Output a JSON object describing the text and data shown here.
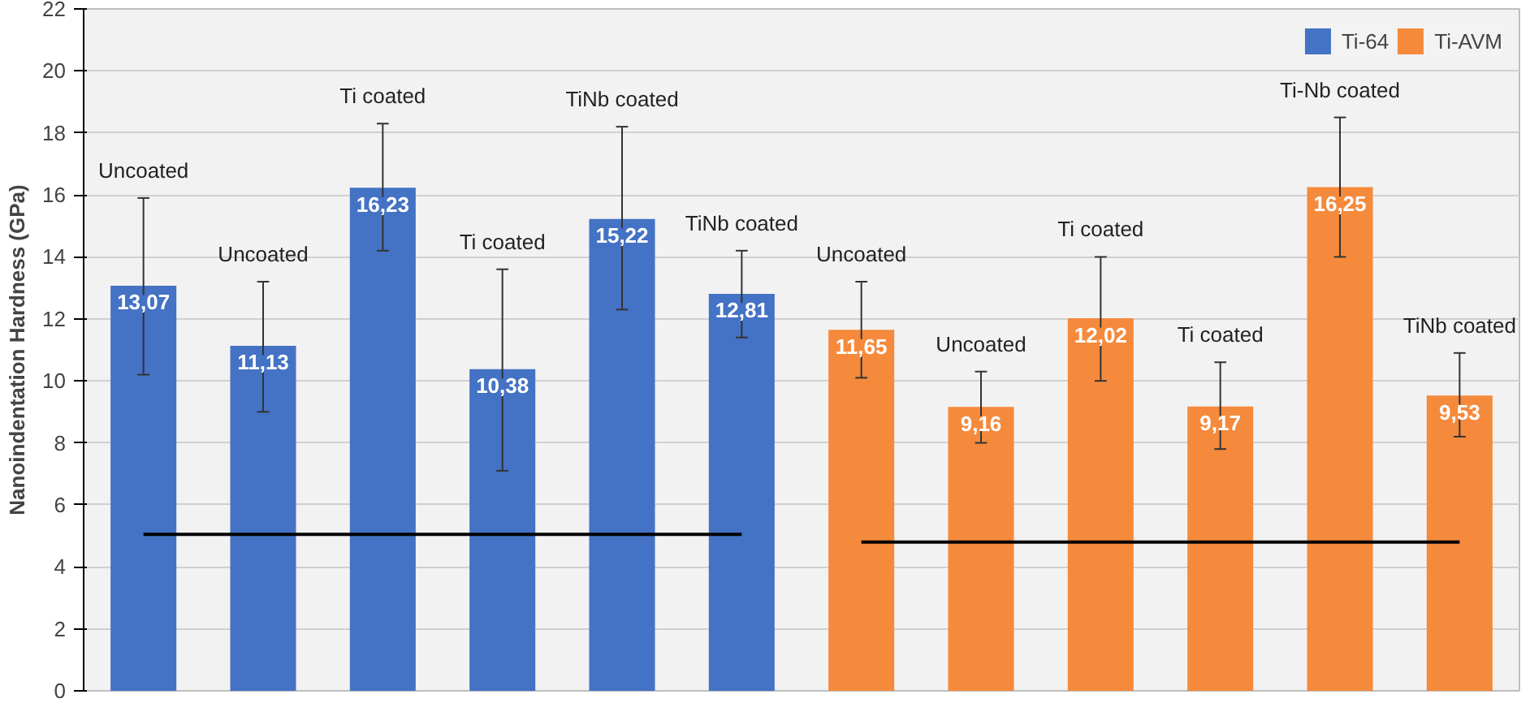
{
  "chart_data": {
    "type": "bar",
    "ylabel": "Nanoindentation Hardness (GPa)",
    "categories": [
      "Uncoated",
      "Uncoated",
      "Ti coated",
      "Ti coated",
      "TiNb coated",
      "TiNb coated",
      "Uncoated",
      "Uncoated",
      "Ti coated",
      "Ti coated",
      "Ti-Nb coated",
      "TiNb coated"
    ],
    "series": [
      {
        "name": "Ti-64",
        "color": "#4472c4",
        "values": [
          13.07,
          11.13,
          16.23,
          10.38,
          15.22,
          12.81,
          null,
          null,
          null,
          null,
          null,
          null
        ],
        "value_labels": [
          "13,07",
          "11,13",
          "16,23",
          "10,38",
          "15,22",
          "12,81",
          null,
          null,
          null,
          null,
          null,
          null
        ],
        "errors": [
          [
            10.2,
            15.9
          ],
          [
            9.0,
            13.2
          ],
          [
            14.2,
            18.3
          ],
          [
            7.1,
            13.6
          ],
          [
            12.3,
            18.2
          ],
          [
            11.4,
            14.2
          ],
          null,
          null,
          null,
          null,
          null,
          null
        ]
      },
      {
        "name": "Ti-AVM",
        "color": "#f58a3c",
        "values": [
          null,
          null,
          null,
          null,
          null,
          null,
          11.65,
          9.16,
          12.02,
          9.17,
          16.25,
          9.53
        ],
        "value_labels": [
          null,
          null,
          null,
          null,
          null,
          null,
          "11,65",
          "9,16",
          "12,02",
          "9,17",
          "16,25",
          "9,53"
        ],
        "errors": [
          null,
          null,
          null,
          null,
          null,
          null,
          [
            10.1,
            13.2
          ],
          [
            8.0,
            10.3
          ],
          [
            10.0,
            14.0
          ],
          [
            7.8,
            10.6
          ],
          [
            14.0,
            18.5
          ],
          [
            8.2,
            10.9
          ]
        ]
      },
      {
        "type": "line",
        "color": "#000000",
        "values": [
          5.05,
          5.05,
          5.05,
          5.05,
          5.05,
          5.05,
          null,
          null,
          null,
          null,
          null,
          null
        ]
      },
      {
        "type": "line",
        "color": "#000000",
        "values": [
          null,
          null,
          null,
          null,
          null,
          null,
          4.8,
          4.8,
          4.8,
          4.8,
          4.8,
          4.8
        ]
      }
    ],
    "ylim": [
      0,
      22
    ],
    "yticks": [
      0,
      2,
      4,
      6,
      8,
      10,
      12,
      14,
      16,
      18,
      20,
      22
    ],
    "grid": "y",
    "legend": "top right"
  }
}
